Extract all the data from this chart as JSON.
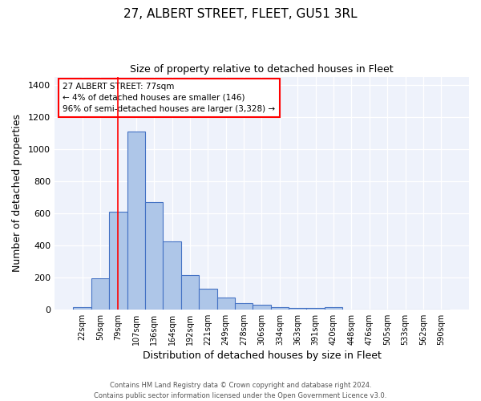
{
  "title": "27, ALBERT STREET, FLEET, GU51 3RL",
  "subtitle": "Size of property relative to detached houses in Fleet",
  "xlabel": "Distribution of detached houses by size in Fleet",
  "ylabel": "Number of detached properties",
  "footer_line1": "Contains HM Land Registry data © Crown copyright and database right 2024.",
  "footer_line2": "Contains public sector information licensed under the Open Government Licence v3.0.",
  "annotation_title": "27 ALBERT STREET: 77sqm",
  "annotation_line1": "← 4% of detached houses are smaller (146)",
  "annotation_line2": "96% of semi-detached houses are larger (3,328) →",
  "bar_labels": [
    "22sqm",
    "50sqm",
    "79sqm",
    "107sqm",
    "136sqm",
    "164sqm",
    "192sqm",
    "221sqm",
    "249sqm",
    "278sqm",
    "306sqm",
    "334sqm",
    "363sqm",
    "391sqm",
    "420sqm",
    "448sqm",
    "476sqm",
    "505sqm",
    "533sqm",
    "562sqm",
    "590sqm"
  ],
  "bar_values": [
    15,
    195,
    608,
    1108,
    668,
    422,
    215,
    128,
    75,
    38,
    30,
    13,
    10,
    8,
    15,
    0,
    0,
    0,
    0,
    0,
    0
  ],
  "bar_color": "#aec6e8",
  "bar_edge_color": "#4472c4",
  "background_color": "#eef2fb",
  "grid_color": "#ffffff",
  "red_line_index": 2,
  "ylim": [
    0,
    1450
  ],
  "yticks": [
    0,
    200,
    400,
    600,
    800,
    1000,
    1200,
    1400
  ]
}
